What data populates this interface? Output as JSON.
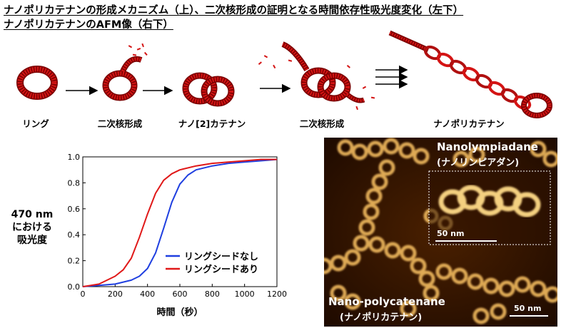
{
  "titles": {
    "line1": "ナノポリカテナンの形成メカニズム（上）、二次核形成の証明となる時間依存性吸光度変化（左下）",
    "line2": "ナノポリカテナンのAFM像（右下）"
  },
  "mechanism": {
    "stages": [
      "リング",
      "二次核形成",
      "ナノ[2]カテナン",
      "二次核形成",
      "ナノポリカテナン"
    ],
    "colors": {
      "ring": "#cc1111",
      "ring_dark": "#7a0000",
      "arrow": "#000000"
    }
  },
  "chart_data": {
    "type": "line",
    "xlabel": "時間（秒）",
    "ylabel": [
      "470 nm",
      "における",
      "吸光度"
    ],
    "xlim": [
      0,
      1200
    ],
    "ylim": [
      0,
      1.0
    ],
    "xticks": [
      0,
      200,
      400,
      600,
      800,
      1000,
      1200
    ],
    "yticks": [
      0.0,
      0.2,
      0.4,
      0.6,
      0.8,
      1.0
    ],
    "ytick_labels": [
      "0.0",
      "0.2",
      "0.4",
      "0.6",
      "0.8",
      "1.0"
    ],
    "legend_placement": "bottom-right",
    "grid": false,
    "series": [
      {
        "name": "リングシードなし",
        "color": "#1f3fe0",
        "x": [
          0,
          100,
          200,
          300,
          350,
          400,
          450,
          500,
          550,
          600,
          650,
          700,
          800,
          900,
          1000,
          1100,
          1200
        ],
        "y": [
          0.0,
          0.01,
          0.02,
          0.05,
          0.08,
          0.14,
          0.26,
          0.45,
          0.65,
          0.79,
          0.86,
          0.9,
          0.93,
          0.95,
          0.96,
          0.97,
          0.98
        ]
      },
      {
        "name": "リングシードあり",
        "color": "#e01818",
        "x": [
          0,
          100,
          150,
          200,
          250,
          300,
          350,
          400,
          450,
          500,
          550,
          600,
          700,
          800,
          900,
          1000,
          1100,
          1200
        ],
        "y": [
          0.0,
          0.02,
          0.05,
          0.08,
          0.13,
          0.22,
          0.38,
          0.56,
          0.72,
          0.82,
          0.87,
          0.9,
          0.93,
          0.95,
          0.96,
          0.97,
          0.98,
          0.98
        ]
      }
    ]
  },
  "afm": {
    "label_top": "Nanolympiadane",
    "label_top_sub": "(ナノリンピアダン)",
    "label_bottom": "Nano-polycatenane",
    "label_bottom_sub": "(ナノポリカテナン)",
    "scale_inset": "50 nm",
    "scale_main": "50 nm"
  }
}
